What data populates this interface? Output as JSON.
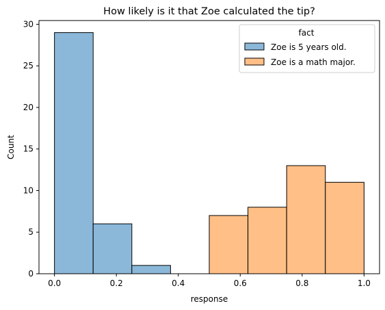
{
  "chart_data": {
    "type": "bar",
    "title": "How likely is it that Zoe calculated the tip?",
    "xlabel": "response",
    "ylabel": "Count",
    "xlim": [
      -0.05,
      1.05
    ],
    "ylim": [
      0,
      30.45
    ],
    "xticks": [
      0.0,
      0.2,
      0.4,
      0.6,
      0.8,
      1.0
    ],
    "xtick_labels": [
      "0.0",
      "0.2",
      "0.4",
      "0.6",
      "0.8",
      "1.0"
    ],
    "yticks": [
      0,
      5,
      10,
      15,
      20,
      25,
      30
    ],
    "ytick_labels": [
      "0",
      "5",
      "10",
      "15",
      "20",
      "25",
      "30"
    ],
    "grid": false,
    "legend": {
      "title": "fact",
      "placement": "top-right"
    },
    "series": [
      {
        "name": "Zoe is 5 years old.",
        "color": "#8bb8d9",
        "bins": [
          {
            "x0": 0.0,
            "x1": 0.125,
            "count": 29
          },
          {
            "x0": 0.125,
            "x1": 0.25,
            "count": 6
          },
          {
            "x0": 0.25,
            "x1": 0.375,
            "count": 1
          }
        ]
      },
      {
        "name": "Zoe is a math major.",
        "color": "#ffbf86",
        "bins": [
          {
            "x0": 0.5,
            "x1": 0.625,
            "count": 7
          },
          {
            "x0": 0.625,
            "x1": 0.75,
            "count": 8
          },
          {
            "x0": 0.75,
            "x1": 0.875,
            "count": 13
          },
          {
            "x0": 0.875,
            "x1": 1.0,
            "count": 11
          }
        ]
      }
    ]
  }
}
